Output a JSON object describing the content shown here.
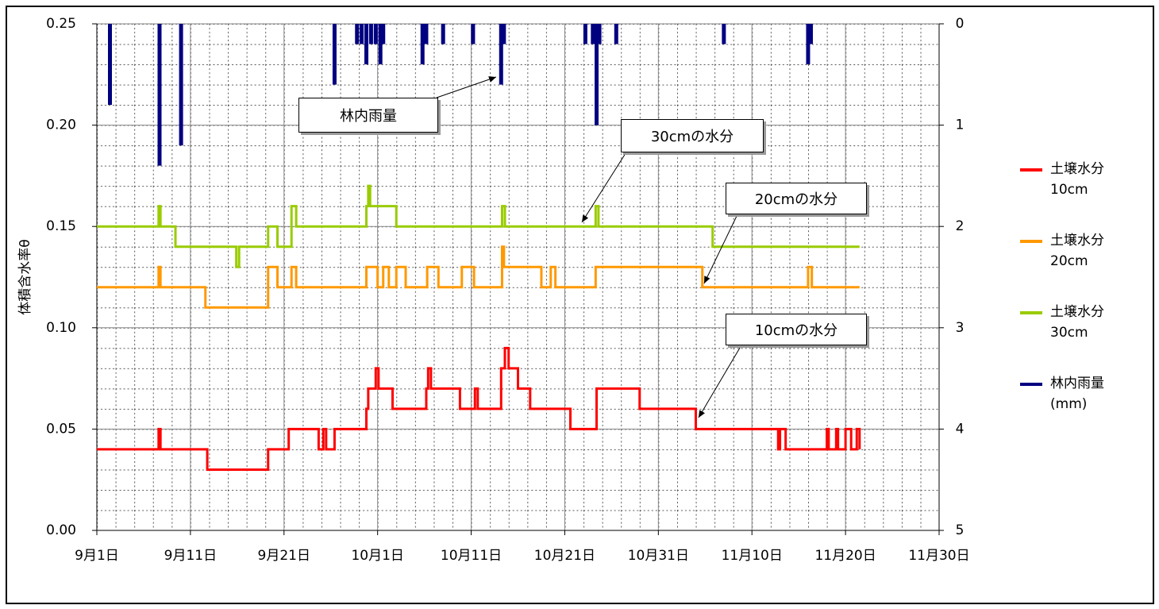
{
  "chart_data": {
    "type": "line",
    "ylabel": "体積含水率θ",
    "xlim": [
      0,
      90
    ],
    "xticks": [
      {
        "value": 0,
        "label": "9月1日"
      },
      {
        "value": 10,
        "label": "9月11日"
      },
      {
        "value": 20,
        "label": "9月21日"
      },
      {
        "value": 30,
        "label": "10月1日"
      },
      {
        "value": 40,
        "label": "10月11日"
      },
      {
        "value": 50,
        "label": "10月21日"
      },
      {
        "value": 60,
        "label": "10月31日"
      },
      {
        "value": 70,
        "label": "11月10日"
      },
      {
        "value": 80,
        "label": "11月20日"
      },
      {
        "value": 90,
        "label": "11月30日"
      }
    ],
    "ylim": [
      0,
      0.25
    ],
    "yticks": [
      {
        "value": 0,
        "label": "0.00"
      },
      {
        "value": 0.05,
        "label": "0.05"
      },
      {
        "value": 0.1,
        "label": "0.10"
      },
      {
        "value": 0.15,
        "label": "0.15"
      },
      {
        "value": 0.2,
        "label": "0.20"
      },
      {
        "value": 0.25,
        "label": "0.25"
      }
    ],
    "y2lim": [
      5,
      0
    ],
    "y2ticks": [
      0,
      1,
      2,
      3,
      4,
      5
    ],
    "grid": true,
    "series": [
      {
        "name": "土壌水分\n10cm",
        "color": "#ff0000",
        "x": [
          0,
          6.6,
          6.8,
          11.8,
          18.3,
          20.5,
          23.7,
          24.2,
          24.5,
          25.4,
          28.8,
          29.0,
          29.8,
          30.1,
          31.6,
          35.2,
          35.4,
          35.7,
          38.8,
          40.4,
          40.7,
          43.2,
          43.6,
          44.0,
          45.0,
          46.3,
          50.6,
          53.4,
          58.0,
          64.0,
          72.8,
          73.0,
          73.6,
          78.0,
          78.2,
          79.0,
          79.2,
          80.0,
          80.6,
          81.2,
          81.5
        ],
        "values": [
          0.04,
          0.05,
          0.04,
          0.03,
          0.04,
          0.05,
          0.04,
          0.05,
          0.04,
          0.05,
          0.06,
          0.07,
          0.08,
          0.07,
          0.06,
          0.07,
          0.08,
          0.07,
          0.06,
          0.07,
          0.06,
          0.08,
          0.09,
          0.08,
          0.07,
          0.06,
          0.05,
          0.07,
          0.06,
          0.05,
          0.04,
          0.05,
          0.04,
          0.05,
          0.04,
          0.05,
          0.04,
          0.05,
          0.04,
          0.05,
          0.04
        ]
      },
      {
        "name": "土壌水分\n20cm",
        "color": "#ff9900",
        "x": [
          0,
          6.6,
          6.8,
          11.6,
          18.3,
          19.3,
          20.8,
          21.3,
          28.8,
          30.0,
          30.6,
          31.2,
          32.0,
          33.0,
          35.3,
          36.5,
          39.0,
          40.3,
          43.3,
          43.5,
          47.5,
          48.5,
          49.0,
          53.3,
          64.7,
          76.0,
          76.4,
          81.5
        ],
        "values": [
          0.12,
          0.13,
          0.12,
          0.11,
          0.13,
          0.12,
          0.13,
          0.12,
          0.13,
          0.12,
          0.13,
          0.12,
          0.13,
          0.12,
          0.13,
          0.12,
          0.13,
          0.12,
          0.14,
          0.13,
          0.12,
          0.13,
          0.12,
          0.13,
          0.12,
          0.13,
          0.12,
          0.12
        ]
      },
      {
        "name": "土壌水分\n30cm",
        "color": "#99cc00",
        "x": [
          0,
          6.6,
          6.8,
          8.4,
          14.9,
          15.2,
          18.3,
          19.3,
          20.8,
          21.3,
          28.8,
          29.0,
          29.2,
          32.0,
          43.3,
          43.6,
          53.3,
          53.6,
          65.8,
          81.5
        ],
        "values": [
          0.15,
          0.16,
          0.15,
          0.14,
          0.13,
          0.14,
          0.15,
          0.14,
          0.16,
          0.15,
          0.16,
          0.17,
          0.16,
          0.15,
          0.16,
          0.15,
          0.16,
          0.15,
          0.14,
          0.14
        ]
      },
      {
        "name": "林内雨量\n(mm)",
        "color": "#000080",
        "axis": "y2",
        "type": "bar",
        "x": [
          1.4,
          6.7,
          9.0,
          25.4,
          27.8,
          28.3,
          28.8,
          29.3,
          29.8,
          30.3,
          30.6,
          34.8,
          35.2,
          37.0,
          40.2,
          43.2,
          43.5,
          52.2,
          53.0,
          53.4,
          53.7,
          55.5,
          67.0,
          76.0,
          76.3
        ],
        "values": [
          0.8,
          1.4,
          1.2,
          0.6,
          0.2,
          0.2,
          0.4,
          0.2,
          0.2,
          0.4,
          0.2,
          0.4,
          0.2,
          0.2,
          0.2,
          0.6,
          0.2,
          0.2,
          0.2,
          1.0,
          0.2,
          0.2,
          0.2,
          0.4,
          0.2
        ]
      }
    ],
    "annotations": [
      "林内雨量",
      "30cmの水分",
      "20cmの水分",
      "10cmの水分"
    ]
  }
}
